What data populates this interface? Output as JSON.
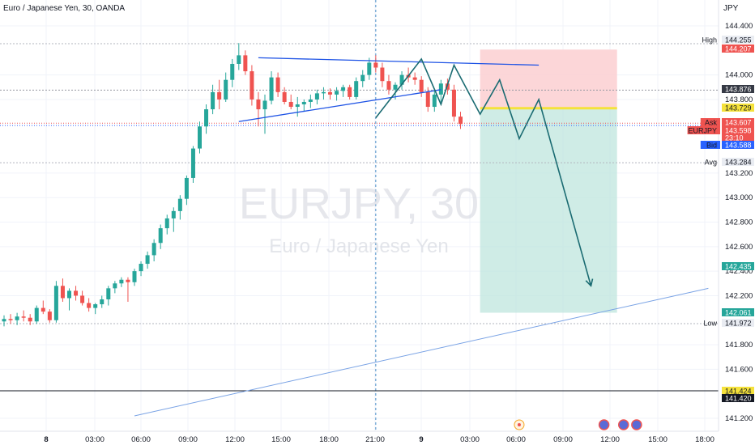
{
  "header": {
    "title": "Euro / Japanese Yen, 30, OANDA",
    "currency": "JPY"
  },
  "watermark": {
    "symbol": "EURJPY, 30",
    "name": "Euro / Japanese Yen"
  },
  "colors": {
    "up": "#26a69a",
    "down": "#ef5350",
    "blue_line": "#1e53e5",
    "path_line": "#1a6b72",
    "target_zone": "#bfe5dd",
    "stop_zone": "#fcd2d4",
    "entry_line": "#f5e23b",
    "text": "#131722",
    "grid": "#f0f3fa"
  },
  "chart_data": {
    "type": "candlestick",
    "timeframe": "30",
    "y_ticks": [
      "144.400",
      "144.000",
      "143.800",
      "143.200",
      "143.000",
      "142.800",
      "142.600",
      "142.400",
      "142.200",
      "141.800",
      "141.600",
      "141.200"
    ],
    "x_ticks": [
      {
        "label": "8",
        "bold": true
      },
      {
        "label": "03:00"
      },
      {
        "label": "06:00"
      },
      {
        "label": "09:00"
      },
      {
        "label": "12:00"
      },
      {
        "label": "15:00"
      },
      {
        "label": "18:00"
      },
      {
        "label": "21:00"
      },
      {
        "label": "9",
        "bold": true
      },
      {
        "label": "03:00"
      },
      {
        "label": "06:00"
      },
      {
        "label": "09:00"
      },
      {
        "label": "12:00"
      },
      {
        "label": "15:00"
      },
      {
        "label": "18:00"
      }
    ],
    "price_tags": [
      {
        "key": "high",
        "label": "High",
        "value": "144.255",
        "bg": "#e9ecf2",
        "fg": "#131722"
      },
      {
        "key": "stop",
        "label": "",
        "value": "144.207",
        "bg": "#ef5350",
        "fg": "#ffffff"
      },
      {
        "key": "level1",
        "label": "",
        "value": "143.876",
        "bg": "#363a45",
        "fg": "#ffffff"
      },
      {
        "key": "entry",
        "label": "",
        "value": "143.729",
        "bg": "#f5e23b",
        "fg": "#131722"
      },
      {
        "key": "ask",
        "label": "Ask",
        "value": "143.607",
        "bg": "#ef5350",
        "fg": "#ffffff"
      },
      {
        "key": "last",
        "label": "EURJPY",
        "value": "143.598",
        "bg": "#ef5350",
        "fg": "#ffffff"
      },
      {
        "key": "countdown",
        "label": "",
        "value": "23:10",
        "bg": "#ef5350",
        "fg": "#ffffff"
      },
      {
        "key": "bid",
        "label": "Bid",
        "value": "143.588",
        "bg": "#2962ff",
        "fg": "#ffffff"
      },
      {
        "key": "avg",
        "label": "Avg",
        "value": "143.284",
        "bg": "#e9ecf2",
        "fg": "#131722"
      },
      {
        "key": "target",
        "label": "",
        "value": "142.435",
        "bg": "#26a69a",
        "fg": "#ffffff"
      },
      {
        "key": "target2",
        "label": "",
        "value": "142.061",
        "bg": "#26a69a",
        "fg": "#ffffff"
      },
      {
        "key": "low",
        "label": "Low",
        "value": "141.972",
        "bg": "#e9ecf2",
        "fg": "#131722"
      },
      {
        "key": "level2",
        "label": "",
        "value": "141.424",
        "bg": "#f5e23b",
        "fg": "#131722"
      },
      {
        "key": "level3",
        "label": "",
        "value": "141.420",
        "bg": "#131722",
        "fg": "#ffffff"
      }
    ],
    "candles": [
      [
        141.99,
        142.04,
        141.95,
        142.01
      ],
      [
        142.01,
        142.05,
        141.97,
        142.0
      ],
      [
        142.0,
        142.06,
        141.96,
        142.03
      ],
      [
        142.03,
        142.08,
        141.99,
        142.02
      ],
      [
        142.02,
        142.05,
        141.96,
        141.99
      ],
      [
        141.99,
        142.12,
        141.97,
        142.1
      ],
      [
        142.1,
        142.16,
        142.05,
        142.07
      ],
      [
        142.07,
        142.09,
        141.98,
        142.0
      ],
      [
        142.0,
        142.32,
        141.98,
        142.28
      ],
      [
        142.28,
        142.34,
        142.15,
        142.18
      ],
      [
        142.18,
        142.26,
        142.08,
        142.24
      ],
      [
        142.24,
        142.28,
        142.16,
        142.2
      ],
      [
        142.2,
        142.24,
        142.12,
        142.14
      ],
      [
        142.14,
        142.18,
        142.07,
        142.1
      ],
      [
        142.1,
        142.14,
        142.05,
        142.13
      ],
      [
        142.13,
        142.2,
        142.1,
        142.17
      ],
      [
        142.17,
        142.28,
        142.12,
        142.26
      ],
      [
        142.26,
        142.32,
        142.22,
        142.3
      ],
      [
        142.3,
        142.35,
        142.27,
        142.33
      ],
      [
        142.33,
        142.35,
        142.15,
        142.31
      ],
      [
        142.31,
        142.42,
        142.28,
        142.4
      ],
      [
        142.4,
        142.48,
        142.36,
        142.46
      ],
      [
        142.46,
        142.56,
        142.42,
        142.53
      ],
      [
        142.53,
        142.66,
        142.48,
        142.63
      ],
      [
        142.63,
        142.78,
        142.58,
        142.75
      ],
      [
        142.75,
        142.86,
        142.7,
        142.83
      ],
      [
        142.83,
        142.92,
        142.72,
        142.89
      ],
      [
        142.89,
        143.02,
        142.82,
        142.99
      ],
      [
        142.99,
        143.18,
        142.94,
        143.16
      ],
      [
        143.16,
        143.42,
        143.12,
        143.4
      ],
      [
        143.4,
        143.62,
        143.36,
        143.58
      ],
      [
        143.58,
        143.76,
        143.52,
        143.72
      ],
      [
        143.72,
        143.92,
        143.68,
        143.86
      ],
      [
        143.86,
        143.96,
        143.72,
        143.8
      ],
      [
        143.8,
        144.02,
        143.78,
        143.96
      ],
      [
        143.96,
        144.13,
        143.9,
        144.09
      ],
      [
        144.09,
        144.26,
        144.04,
        144.16
      ],
      [
        144.16,
        144.2,
        144.0,
        144.03
      ],
      [
        144.03,
        144.08,
        143.75,
        143.8
      ],
      [
        143.8,
        143.86,
        143.58,
        143.72
      ],
      [
        143.72,
        143.84,
        143.52,
        143.79
      ],
      [
        143.79,
        144.03,
        143.76,
        143.98
      ],
      [
        143.98,
        144.02,
        143.82,
        143.86
      ],
      [
        143.86,
        143.9,
        143.76,
        143.78
      ],
      [
        143.78,
        143.84,
        143.72,
        143.74
      ],
      [
        143.74,
        143.82,
        143.66,
        143.76
      ],
      [
        143.76,
        143.8,
        143.7,
        143.78
      ],
      [
        143.78,
        143.84,
        143.73,
        143.8
      ],
      [
        143.8,
        143.88,
        143.76,
        143.85
      ],
      [
        143.85,
        143.9,
        143.8,
        143.86
      ],
      [
        143.86,
        143.89,
        143.8,
        143.84
      ],
      [
        143.84,
        143.9,
        143.79,
        143.87
      ],
      [
        143.87,
        143.92,
        143.82,
        143.9
      ],
      [
        143.9,
        143.92,
        143.8,
        143.82
      ],
      [
        143.82,
        143.98,
        143.8,
        143.95
      ],
      [
        143.95,
        144.04,
        143.9,
        144.0
      ],
      [
        144.0,
        144.14,
        143.96,
        144.1
      ],
      [
        144.1,
        144.16,
        144.02,
        144.06
      ],
      [
        144.06,
        144.1,
        143.9,
        143.95
      ],
      [
        143.95,
        144.0,
        143.84,
        143.88
      ],
      [
        143.88,
        143.94,
        143.8,
        143.92
      ],
      [
        143.92,
        144.03,
        143.88,
        144.0
      ],
      [
        144.0,
        144.06,
        143.94,
        143.98
      ],
      [
        143.98,
        144.02,
        143.92,
        143.96
      ],
      [
        143.96,
        143.99,
        143.82,
        143.86
      ],
      [
        143.86,
        143.9,
        143.7,
        143.74
      ],
      [
        143.74,
        143.88,
        143.7,
        143.84
      ],
      [
        143.84,
        143.96,
        143.78,
        143.93
      ],
      [
        143.93,
        143.97,
        143.84,
        143.88
      ],
      [
        143.88,
        143.92,
        143.62,
        143.66
      ],
      [
        143.66,
        143.7,
        143.56,
        143.6
      ]
    ],
    "trend_lines": [
      {
        "style": "blue",
        "points": [
          [
            36,
            143.62
          ],
          [
            67,
            143.88
          ]
        ]
      },
      {
        "style": "blue",
        "points": [
          [
            39,
            144.14
          ],
          [
            82,
            144.08
          ]
        ]
      },
      {
        "style": "blue-light",
        "points": [
          [
            20,
            141.22
          ],
          [
            108,
            142.26
          ]
        ]
      }
    ],
    "zigzag": [
      [
        57,
        143.65
      ],
      [
        64,
        144.13
      ],
      [
        67,
        143.76
      ],
      [
        69,
        144.08
      ],
      [
        73,
        143.68
      ],
      [
        76,
        143.96
      ],
      [
        79,
        143.48
      ],
      [
        82,
        143.8
      ],
      [
        90,
        142.28
      ]
    ],
    "position": {
      "start": 73,
      "end": 94,
      "stop": 144.207,
      "entry": 143.729,
      "target": 142.061
    },
    "session_line_index": 57,
    "hlines": [
      {
        "value": 144.255,
        "color": "#b2b5be",
        "dash": "2,2"
      },
      {
        "value": 143.876,
        "color": "#9598a1",
        "dash": "2,2"
      },
      {
        "value": 143.607,
        "color": "#ef5350",
        "dash": "1,2"
      },
      {
        "value": 143.588,
        "color": "#2962ff",
        "dash": "1,2"
      },
      {
        "value": 143.284,
        "color": "#b2b5be",
        "dash": "2,2"
      },
      {
        "value": 141.972,
        "color": "#b2b5be",
        "dash": "2,2"
      },
      {
        "value": 141.424,
        "color": "#131722",
        "dash": ""
      }
    ],
    "events": [
      {
        "index": 79,
        "kind": "calendar"
      },
      {
        "index": 92,
        "kind": "flag"
      },
      {
        "index": 95,
        "kind": "flag"
      },
      {
        "index": 97,
        "kind": "flag"
      }
    ]
  }
}
